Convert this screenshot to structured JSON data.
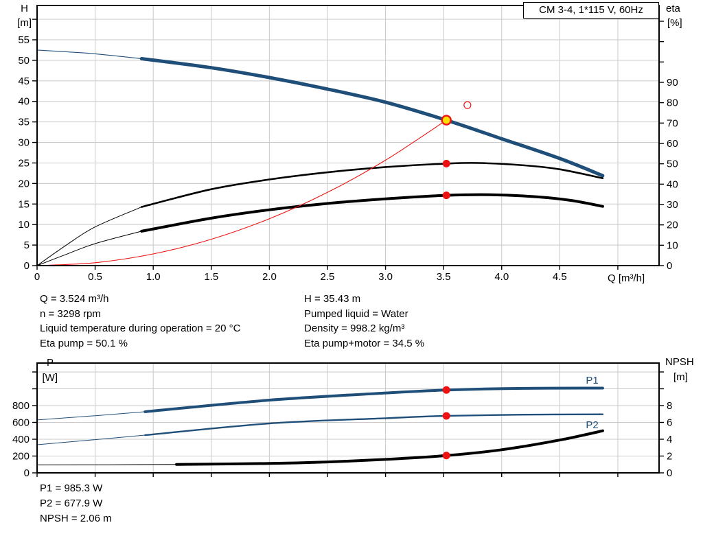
{
  "window": {
    "title_box": "CM 3-4, 1*115 V, 60Hz"
  },
  "colors": {
    "blue": "#1f4e79",
    "black": "#000000",
    "red": "#ee1111",
    "yellow": "#ffdf00",
    "grid": "#c9c9c9",
    "frame": "#000000"
  },
  "axis_labels": {
    "h": "H",
    "h_unit": "[m]",
    "eta": "eta",
    "eta_unit": "[%]",
    "q": "Q [m³/h]",
    "p": "P",
    "p_unit": "[W]",
    "npsh": "NPSH",
    "npsh_unit": "[m]",
    "p1": "P1",
    "p2": "P2"
  },
  "annotations": {
    "left": [
      "Q = 3.524 m³/h",
      "n = 3298 rpm",
      "Liquid temperature during operation = 20 °C",
      "Eta pump = 50.1 %"
    ],
    "right": [
      "H = 35.43 m",
      "Pumped liquid = Water",
      "Density = 998.2 kg/m³",
      "Eta pump+motor = 34.5 %"
    ],
    "bottom": [
      "P1 = 985.3 W",
      "P2 = 677.9 W",
      "NPSH = 2.06 m"
    ]
  },
  "operating_point": {
    "Q": 3.524,
    "H": 35.43,
    "eta_pump": 50.1,
    "eta_pump_motor": 34.5,
    "P1": 985.3,
    "P2": 677.9,
    "NPSH": 2.06,
    "n_rpm": 3298
  },
  "chart_data": [
    {
      "id": "hq-eta-chart",
      "type": "line",
      "title": "CM 3-4, 1*115 V, 60Hz",
      "x_axis": {
        "label": "Q [m³/h]",
        "range": [
          0,
          5.355
        ],
        "ticks": [
          {
            "v": 0,
            "t": "0"
          },
          {
            "v": 0.5,
            "t": "0.5"
          },
          {
            "v": 1,
            "t": "1.0"
          },
          {
            "v": 1.5,
            "t": "1.5"
          },
          {
            "v": 2,
            "t": "2.0"
          },
          {
            "v": 2.5,
            "t": "2.5"
          },
          {
            "v": 3,
            "t": "3.0"
          },
          {
            "v": 3.5,
            "t": "3.5"
          },
          {
            "v": 4,
            "t": "4.0"
          },
          {
            "v": 4.5,
            "t": "4.5"
          },
          {
            "v": 5,
            "t": ""
          }
        ]
      },
      "left_axis": {
        "label": "H [m]",
        "range": [
          0,
          63.36
        ],
        "ticks": [
          {
            "v": 0,
            "t": "0"
          },
          {
            "v": 5,
            "t": "5"
          },
          {
            "v": 10,
            "t": "10"
          },
          {
            "v": 15,
            "t": "15"
          },
          {
            "v": 20,
            "t": "20"
          },
          {
            "v": 25,
            "t": "25"
          },
          {
            "v": 30,
            "t": "30"
          },
          {
            "v": 35,
            "t": "35"
          },
          {
            "v": 40,
            "t": "40"
          },
          {
            "v": 45,
            "t": "45"
          },
          {
            "v": 50,
            "t": "50"
          },
          {
            "v": 55,
            "t": "55"
          },
          {
            "v": 60,
            "t": ""
          }
        ]
      },
      "right_axis": {
        "label": "eta [%]",
        "range": [
          0,
          127.74
        ],
        "ticks": [
          {
            "v": 0,
            "t": "0"
          },
          {
            "v": 10,
            "t": "10"
          },
          {
            "v": 20,
            "t": "20"
          },
          {
            "v": 30,
            "t": "30"
          },
          {
            "v": 40,
            "t": "40"
          },
          {
            "v": 50,
            "t": "50"
          },
          {
            "v": 60,
            "t": "60"
          },
          {
            "v": 70,
            "t": "70"
          },
          {
            "v": 80,
            "t": "80"
          },
          {
            "v": 90,
            "t": "90"
          },
          {
            "v": 100,
            "t": ""
          },
          {
            "v": 110,
            "t": ""
          },
          {
            "v": 120,
            "t": ""
          }
        ]
      },
      "series": [
        {
          "name": "pump-curve-low",
          "axis": "left",
          "color": "blue",
          "width": 1.2,
          "points": [
            [
              0,
              52.5
            ],
            [
              0.45,
              51.7
            ],
            [
              0.9,
              50.4
            ]
          ]
        },
        {
          "name": "pump-curve",
          "axis": "left",
          "color": "blue",
          "width": 5,
          "points": [
            [
              0.9,
              50.4
            ],
            [
              1.5,
              48.2
            ],
            [
              2.0,
              45.8
            ],
            [
              2.5,
              43.0
            ],
            [
              3.0,
              39.8
            ],
            [
              3.524,
              35.43
            ],
            [
              4.0,
              30.9
            ],
            [
              4.5,
              26.1
            ],
            [
              4.87,
              21.9
            ]
          ]
        },
        {
          "name": "eta-pump-curve-low",
          "axis": "right",
          "color": "black",
          "width": 1,
          "points": [
            [
              0,
              0
            ],
            [
              0.25,
              10
            ],
            [
              0.5,
              19
            ],
            [
              0.9,
              28.8
            ]
          ]
        },
        {
          "name": "eta-pump-curve",
          "axis": "right",
          "color": "black",
          "width": 2.6,
          "points": [
            [
              0.9,
              28.8
            ],
            [
              1.5,
              37.5
            ],
            [
              2.0,
              42.3
            ],
            [
              2.5,
              45.8
            ],
            [
              3.0,
              48.4
            ],
            [
              3.524,
              50.1
            ],
            [
              3.8,
              50.4
            ],
            [
              4.2,
              49.2
            ],
            [
              4.5,
              47.3
            ],
            [
              4.87,
              42.9
            ]
          ]
        },
        {
          "name": "eta-pump-motor-curve-low",
          "axis": "right",
          "color": "black",
          "width": 1,
          "points": [
            [
              0,
              0
            ],
            [
              0.25,
              5.5
            ],
            [
              0.5,
              10.8
            ],
            [
              0.9,
              16.9
            ]
          ]
        },
        {
          "name": "eta-pump-motor-curve",
          "axis": "right",
          "color": "black",
          "width": 4,
          "points": [
            [
              0.9,
              16.9
            ],
            [
              1.5,
              23.3
            ],
            [
              2.0,
              27.4
            ],
            [
              2.5,
              30.5
            ],
            [
              3.0,
              32.8
            ],
            [
              3.524,
              34.5
            ],
            [
              3.9,
              34.8
            ],
            [
              4.3,
              33.8
            ],
            [
              4.6,
              32.0
            ],
            [
              4.87,
              29.1
            ]
          ]
        },
        {
          "name": "system-curve",
          "axis": "left",
          "color": "red",
          "width": 1.1,
          "points": [
            [
              0,
              0
            ],
            [
              0.5,
              0.71
            ],
            [
              1,
              2.85
            ],
            [
              1.5,
              6.42
            ],
            [
              2,
              11.41
            ],
            [
              2.5,
              17.83
            ],
            [
              3,
              25.68
            ],
            [
              3.524,
              35.43
            ]
          ]
        }
      ],
      "markers": [
        {
          "name": "duty-point",
          "axis": "left",
          "x": 3.524,
          "y": 35.43,
          "r": 6.5,
          "fill": "yellow",
          "stroke": "red",
          "sw": 2.4
        },
        {
          "name": "rated-point",
          "axis": "left",
          "x": 3.705,
          "y": 39.1,
          "r": 5,
          "fill": "none",
          "stroke": "red",
          "sw": 1.2
        },
        {
          "name": "eta-pump-dot",
          "axis": "right",
          "x": 3.524,
          "y": 50.1,
          "r": 5.5,
          "fill": "red",
          "stroke": "none",
          "sw": 0
        },
        {
          "name": "eta-pump-motor-dot",
          "axis": "right",
          "x": 3.524,
          "y": 34.5,
          "r": 5.5,
          "fill": "red",
          "stroke": "none",
          "sw": 0
        }
      ]
    },
    {
      "id": "power-npsh-chart",
      "type": "line",
      "x_axis": {
        "label": "",
        "range": [
          0,
          5.355
        ],
        "ticks": [
          {
            "v": 0,
            "t": ""
          },
          {
            "v": 0.5,
            "t": ""
          },
          {
            "v": 1,
            "t": ""
          },
          {
            "v": 1.5,
            "t": ""
          },
          {
            "v": 2,
            "t": ""
          },
          {
            "v": 2.5,
            "t": ""
          },
          {
            "v": 3,
            "t": ""
          },
          {
            "v": 3.5,
            "t": ""
          },
          {
            "v": 4,
            "t": ""
          },
          {
            "v": 4.5,
            "t": ""
          },
          {
            "v": 5,
            "t": ""
          }
        ]
      },
      "left_axis": {
        "label": "P [W]",
        "range": [
          0,
          1306
        ],
        "ticks": [
          {
            "v": 0,
            "t": "0"
          },
          {
            "v": 200,
            "t": "200"
          },
          {
            "v": 400,
            "t": "400"
          },
          {
            "v": 600,
            "t": "600"
          },
          {
            "v": 800,
            "t": "800"
          },
          {
            "v": 1000,
            "t": ""
          },
          {
            "v": 1200,
            "t": ""
          }
        ]
      },
      "right_axis": {
        "label": "NPSH [m]",
        "range": [
          0,
          13.06
        ],
        "ticks": [
          {
            "v": 0,
            "t": "0"
          },
          {
            "v": 2,
            "t": "2"
          },
          {
            "v": 4,
            "t": "4"
          },
          {
            "v": 6,
            "t": "6"
          },
          {
            "v": 8,
            "t": "8"
          },
          {
            "v": 10,
            "t": ""
          },
          {
            "v": 12,
            "t": ""
          }
        ]
      },
      "series": [
        {
          "name": "p1-curve-low",
          "axis": "left",
          "color": "blue",
          "width": 1,
          "points": [
            [
              0,
              630
            ],
            [
              0.5,
              680
            ],
            [
              0.93,
              727
            ]
          ]
        },
        {
          "name": "p1-curve",
          "axis": "left",
          "color": "blue",
          "width": 4,
          "points": [
            [
              0.93,
              727
            ],
            [
              2,
              865
            ],
            [
              3,
              950
            ],
            [
              3.524,
              985.3
            ],
            [
              4.2,
              1005
            ],
            [
              4.87,
              1008
            ]
          ]
        },
        {
          "name": "p2-curve-low",
          "axis": "left",
          "color": "blue",
          "width": 1,
          "points": [
            [
              0,
              335
            ],
            [
              0.5,
              395
            ],
            [
              0.93,
              449
            ]
          ]
        },
        {
          "name": "p2-curve",
          "axis": "left",
          "color": "blue",
          "width": 2.4,
          "points": [
            [
              0.93,
              449
            ],
            [
              2,
              588
            ],
            [
              3,
              650
            ],
            [
              3.524,
              677.9
            ],
            [
              4.2,
              692
            ],
            [
              4.87,
              696
            ]
          ]
        },
        {
          "name": "npsh-curve-low",
          "axis": "right",
          "color": "black",
          "width": 1,
          "points": [
            [
              0,
              0.95
            ],
            [
              0.6,
              0.96
            ],
            [
              1.2,
              1.0
            ]
          ]
        },
        {
          "name": "npsh-curve",
          "axis": "right",
          "color": "black",
          "width": 4,
          "points": [
            [
              1.2,
              1.0
            ],
            [
              2,
              1.12
            ],
            [
              2.5,
              1.3
            ],
            [
              3,
              1.6
            ],
            [
              3.524,
              2.06
            ],
            [
              4,
              2.75
            ],
            [
              4.5,
              3.9
            ],
            [
              4.87,
              5.0
            ]
          ]
        }
      ],
      "markers": [
        {
          "name": "p1-dot",
          "axis": "left",
          "x": 3.524,
          "y": 985.3,
          "r": 5.5,
          "fill": "red",
          "stroke": "none",
          "sw": 0
        },
        {
          "name": "p2-dot",
          "axis": "left",
          "x": 3.524,
          "y": 677.9,
          "r": 5.5,
          "fill": "red",
          "stroke": "none",
          "sw": 0
        },
        {
          "name": "npsh-dot",
          "axis": "right",
          "x": 3.524,
          "y": 2.06,
          "r": 5.5,
          "fill": "red",
          "stroke": "none",
          "sw": 0
        }
      ]
    }
  ]
}
